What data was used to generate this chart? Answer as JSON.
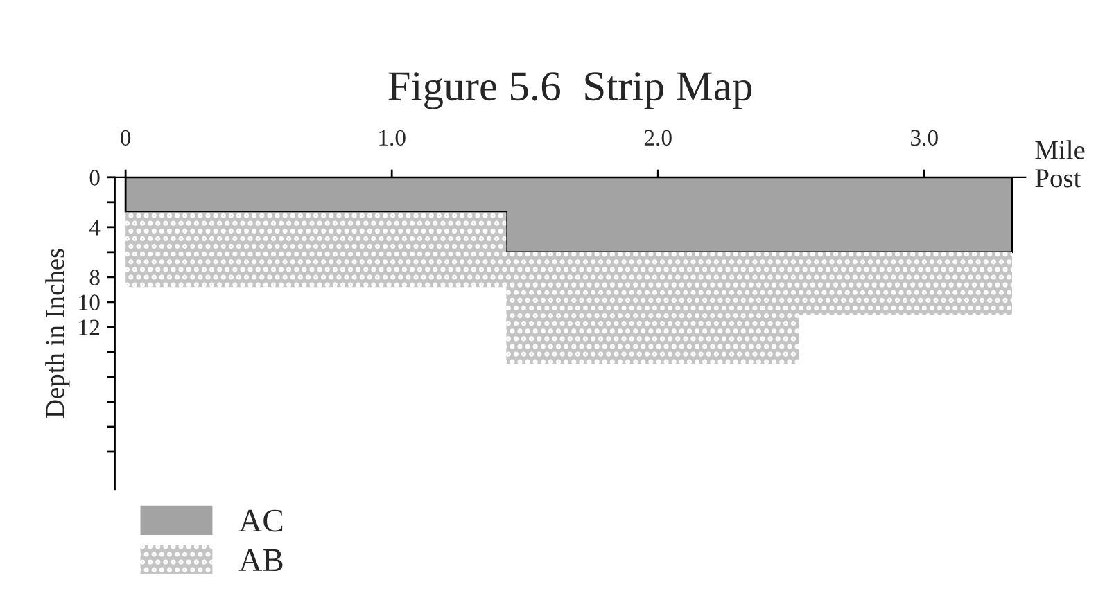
{
  "chart_data": {
    "type": "area",
    "title": "Figure 5.6  Strip Map",
    "xlabel": "Mile Post",
    "ylabel": "Depth in Inches",
    "x": [
      0,
      1.43,
      1.43,
      2.53,
      2.53,
      3.33
    ],
    "stacked": true,
    "series": [
      {
        "name": "AC",
        "color": "#a3a3a3",
        "values": [
          2.8,
          2.8,
          6,
          6,
          6,
          6
        ]
      },
      {
        "name": "AB",
        "color": "#c4c4c4",
        "values": [
          6,
          6,
          9,
          9,
          5,
          5
        ]
      }
    ],
    "xlim": [
      -0.04,
      3.38
    ],
    "xticks": [
      {
        "value": 0,
        "label": "0"
      },
      {
        "value": 1,
        "label": "1.0"
      },
      {
        "value": 2,
        "label": "2.0"
      },
      {
        "value": 3,
        "label": "3.0"
      }
    ],
    "ylim": [
      25,
      0
    ],
    "yticks": [
      0,
      {
        "value": 2,
        "label": null
      },
      4,
      {
        "value": 6,
        "label": null
      },
      8,
      10,
      12,
      {
        "value": 14,
        "label": null
      },
      {
        "value": 16,
        "label": null
      },
      {
        "value": 18,
        "label": null
      },
      {
        "value": 20,
        "label": null
      },
      {
        "value": 22,
        "label": null
      }
    ],
    "grid": false,
    "legend": "bottom left"
  }
}
